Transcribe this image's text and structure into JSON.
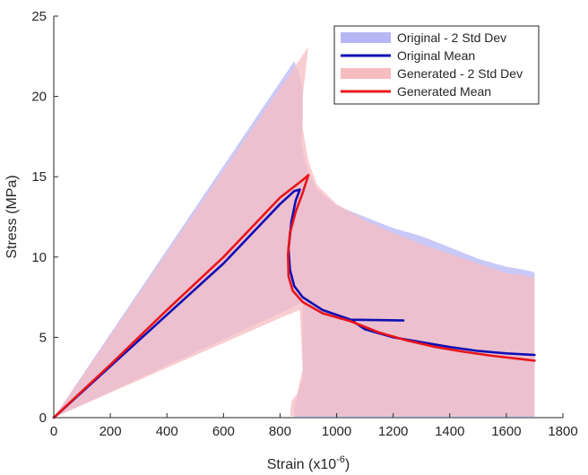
{
  "chart_data": {
    "type": "line",
    "title": "",
    "xlabel": "Strain (x10",
    "xlabel_exponent": "-6",
    "xlabel_suffix": ")",
    "ylabel": "Stress (MPa)",
    "xlim": [
      0,
      1800
    ],
    "ylim": [
      0,
      25
    ],
    "xticks": [
      0,
      200,
      400,
      600,
      800,
      1000,
      1200,
      1400,
      1600,
      1800
    ],
    "yticks": [
      0,
      5,
      10,
      15,
      20,
      25
    ],
    "grid": false,
    "legend_position": "top-right",
    "series": [
      {
        "name": "Original - 2 Std Dev",
        "kind": "band",
        "color": "#b7b7f5",
        "upper": [
          [
            0,
            0
          ],
          [
            850,
            22.2
          ],
          [
            865,
            21.5
          ],
          [
            880,
            20.5
          ],
          [
            880,
            19
          ],
          [
            875,
            17
          ],
          [
            890,
            15.8
          ],
          [
            930,
            14.2
          ],
          [
            1000,
            13.2
          ],
          [
            1100,
            12.5
          ],
          [
            1200,
            11.8
          ],
          [
            1300,
            11.3
          ],
          [
            1400,
            10.6
          ],
          [
            1500,
            9.9
          ],
          [
            1600,
            9.4
          ],
          [
            1650,
            9.25
          ],
          [
            1690,
            9.1
          ],
          [
            1700,
            9.0
          ]
        ],
        "lower": [
          [
            0,
            0
          ],
          [
            800,
            6.5
          ],
          [
            880,
            7.2
          ],
          [
            880,
            2.5
          ],
          [
            860,
            1.3
          ],
          [
            850,
            0.7
          ],
          [
            850,
            0.05
          ],
          [
            1700,
            0.05
          ]
        ]
      },
      {
        "name": "Original Mean",
        "kind": "line",
        "color": "#0f0fb4",
        "points": [
          [
            0,
            0
          ],
          [
            200,
            3.2
          ],
          [
            400,
            6.4
          ],
          [
            600,
            9.6
          ],
          [
            800,
            13.3
          ],
          [
            850,
            14.1
          ],
          [
            870,
            14.2
          ],
          [
            855,
            13.5
          ],
          [
            840,
            12.2
          ],
          [
            830,
            10.5
          ],
          [
            835,
            9.2
          ],
          [
            850,
            8.2
          ],
          [
            880,
            7.5
          ],
          [
            950,
            6.7
          ],
          [
            1050,
            6.1
          ],
          [
            1236,
            6.05
          ],
          [
            1050,
            6.1
          ],
          [
            1100,
            5.5
          ],
          [
            1200,
            5.0
          ],
          [
            1300,
            4.7
          ],
          [
            1400,
            4.4
          ],
          [
            1500,
            4.15
          ],
          [
            1600,
            4.0
          ],
          [
            1700,
            3.9
          ]
        ]
      },
      {
        "name": "Generated - 2 Std Dev",
        "kind": "band",
        "color": "#f7bcc1",
        "upper": [
          [
            0,
            0
          ],
          [
            870,
            22.3
          ],
          [
            900,
            23.1
          ],
          [
            880,
            20
          ],
          [
            880,
            18
          ],
          [
            900,
            16
          ],
          [
            930,
            14.5
          ],
          [
            1000,
            13.3
          ],
          [
            1100,
            12.3
          ],
          [
            1200,
            11.5
          ],
          [
            1300,
            10.8
          ],
          [
            1400,
            10.2
          ],
          [
            1500,
            9.6
          ],
          [
            1600,
            9.0
          ],
          [
            1650,
            8.9
          ],
          [
            1700,
            8.7
          ]
        ],
        "lower": [
          [
            0,
            0
          ],
          [
            800,
            6.2
          ],
          [
            870,
            6.7
          ],
          [
            880,
            3
          ],
          [
            860,
            1.5
          ],
          [
            840,
            1
          ],
          [
            835,
            0.1
          ],
          [
            1700,
            0.1
          ]
        ]
      },
      {
        "name": "Generated Mean",
        "kind": "line",
        "color": "#e8151b",
        "points": [
          [
            0,
            0
          ],
          [
            200,
            3.3
          ],
          [
            400,
            6.7
          ],
          [
            600,
            10.0
          ],
          [
            800,
            13.7
          ],
          [
            880,
            14.8
          ],
          [
            900,
            15.1
          ],
          [
            880,
            14.0
          ],
          [
            855,
            12.8
          ],
          [
            835,
            11.5
          ],
          [
            828,
            10.2
          ],
          [
            830,
            8.8
          ],
          [
            845,
            7.9
          ],
          [
            880,
            7.2
          ],
          [
            950,
            6.5
          ],
          [
            1050,
            6.0
          ],
          [
            1150,
            5.3
          ],
          [
            1250,
            4.8
          ],
          [
            1350,
            4.4
          ],
          [
            1450,
            4.1
          ],
          [
            1550,
            3.85
          ],
          [
            1650,
            3.65
          ],
          [
            1700,
            3.55
          ]
        ]
      }
    ]
  }
}
